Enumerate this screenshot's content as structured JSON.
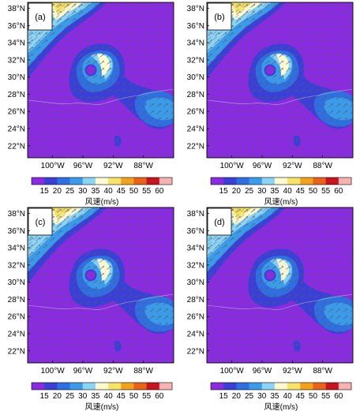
{
  "figure": {
    "panels": [
      {
        "label": "(a)"
      },
      {
        "label": "(b)"
      },
      {
        "label": "(c)"
      },
      {
        "label": "(d)"
      }
    ]
  },
  "chart_data": [
    {
      "type": "heatmap",
      "panel": "(a)",
      "title": "",
      "xlabel": "",
      "ylabel": "",
      "x_ticks": [
        "100°W",
        "96°W",
        "92°W",
        "88°W"
      ],
      "x_tick_values": [
        -100,
        -96,
        -92,
        -88
      ],
      "y_ticks": [
        "22°N",
        "24°N",
        "26°N",
        "28°N",
        "30°N",
        "32°N",
        "34°N",
        "36°N",
        "38°N"
      ],
      "y_tick_values": [
        22,
        24,
        26,
        28,
        30,
        32,
        34,
        36,
        38
      ],
      "xlim": [
        -103.3,
        -84.0
      ],
      "ylim": [
        20.6,
        38.7
      ],
      "colorbar": {
        "title": "风速(m/s)",
        "tick_labels": [
          "15",
          "20",
          "25",
          "30",
          "35",
          "40",
          "45",
          "50",
          "55",
          "60"
        ],
        "levels": [
          15,
          20,
          25,
          30,
          35,
          40,
          45,
          50,
          55,
          60
        ],
        "colors": [
          "#8a2be2",
          "#3a3fd6",
          "#2f6fe0",
          "#3b9be8",
          "#8cd3f5",
          "#fffad0",
          "#f7e36a",
          "#f0a21c",
          "#e86219",
          "#c8141e",
          "#f7b3b3"
        ]
      },
      "overlay": "wind vectors"
    },
    {
      "type": "heatmap",
      "panel": "(b)",
      "title": "",
      "xlabel": "",
      "ylabel": "",
      "x_ticks": [
        "100°W",
        "96°W",
        "92°W",
        "88°W"
      ],
      "x_tick_values": [
        -100,
        -96,
        -92,
        -88
      ],
      "y_ticks": [
        "22°N",
        "24°N",
        "26°N",
        "28°N",
        "30°N",
        "32°N",
        "34°N",
        "36°N",
        "38°N"
      ],
      "y_tick_values": [
        22,
        24,
        26,
        28,
        30,
        32,
        34,
        36,
        38
      ],
      "xlim": [
        -103.3,
        -84.0
      ],
      "ylim": [
        20.6,
        38.7
      ],
      "colorbar": {
        "title": "风速(m/s)",
        "tick_labels": [
          "15",
          "20",
          "25",
          "30",
          "35",
          "40",
          "45",
          "50",
          "55",
          "60"
        ],
        "levels": [
          15,
          20,
          25,
          30,
          35,
          40,
          45,
          50,
          55,
          60
        ],
        "colors": [
          "#8a2be2",
          "#3a3fd6",
          "#2f6fe0",
          "#3b9be8",
          "#8cd3f5",
          "#fffad0",
          "#f7e36a",
          "#f0a21c",
          "#e86219",
          "#c8141e",
          "#f7b3b3"
        ]
      },
      "overlay": "wind vectors"
    },
    {
      "type": "heatmap",
      "panel": "(c)",
      "title": "",
      "xlabel": "",
      "ylabel": "",
      "x_ticks": [
        "100°W",
        "96°W",
        "92°W",
        "88°W"
      ],
      "x_tick_values": [
        -100,
        -96,
        -92,
        -88
      ],
      "y_ticks": [
        "22°N",
        "24°N",
        "26°N",
        "28°N",
        "30°N",
        "32°N",
        "34°N",
        "36°N",
        "38°N"
      ],
      "y_tick_values": [
        22,
        24,
        26,
        28,
        30,
        32,
        34,
        36,
        38
      ],
      "xlim": [
        -103.3,
        -84.0
      ],
      "ylim": [
        20.6,
        38.7
      ],
      "colorbar": {
        "title": "风速(m/s)",
        "tick_labels": [
          "15",
          "20",
          "25",
          "30",
          "35",
          "40",
          "45",
          "50",
          "55",
          "60"
        ],
        "levels": [
          15,
          20,
          25,
          30,
          35,
          40,
          45,
          50,
          55,
          60
        ],
        "colors": [
          "#8a2be2",
          "#3a3fd6",
          "#2f6fe0",
          "#3b9be8",
          "#8cd3f5",
          "#fffad0",
          "#f7e36a",
          "#f0a21c",
          "#e86219",
          "#c8141e",
          "#f7b3b3"
        ]
      },
      "overlay": "wind vectors"
    },
    {
      "type": "heatmap",
      "panel": "(d)",
      "title": "",
      "xlabel": "",
      "ylabel": "",
      "x_ticks": [
        "100°W",
        "96°W",
        "92°W",
        "88°W"
      ],
      "x_tick_values": [
        -100,
        -96,
        -92,
        -88
      ],
      "y_ticks": [
        "22°N",
        "24°N",
        "26°N",
        "28°N",
        "30°N",
        "32°N",
        "34°N",
        "36°N",
        "38°N"
      ],
      "y_tick_values": [
        22,
        24,
        26,
        28,
        30,
        32,
        34,
        36,
        38
      ],
      "xlim": [
        -103.3,
        -84.0
      ],
      "ylim": [
        20.6,
        38.7
      ],
      "colorbar": {
        "title": "风速(m/s)",
        "tick_labels": [
          "15",
          "20",
          "25",
          "30",
          "35",
          "40",
          "45",
          "50",
          "55",
          "60"
        ],
        "levels": [
          15,
          20,
          25,
          30,
          35,
          40,
          45,
          50,
          55,
          60
        ],
        "colors": [
          "#8a2be2",
          "#3a3fd6",
          "#2f6fe0",
          "#3b9be8",
          "#8cd3f5",
          "#fffad0",
          "#f7e36a",
          "#f0a21c",
          "#e86219",
          "#c8141e",
          "#f7b3b3"
        ]
      },
      "overlay": "wind vectors"
    }
  ]
}
